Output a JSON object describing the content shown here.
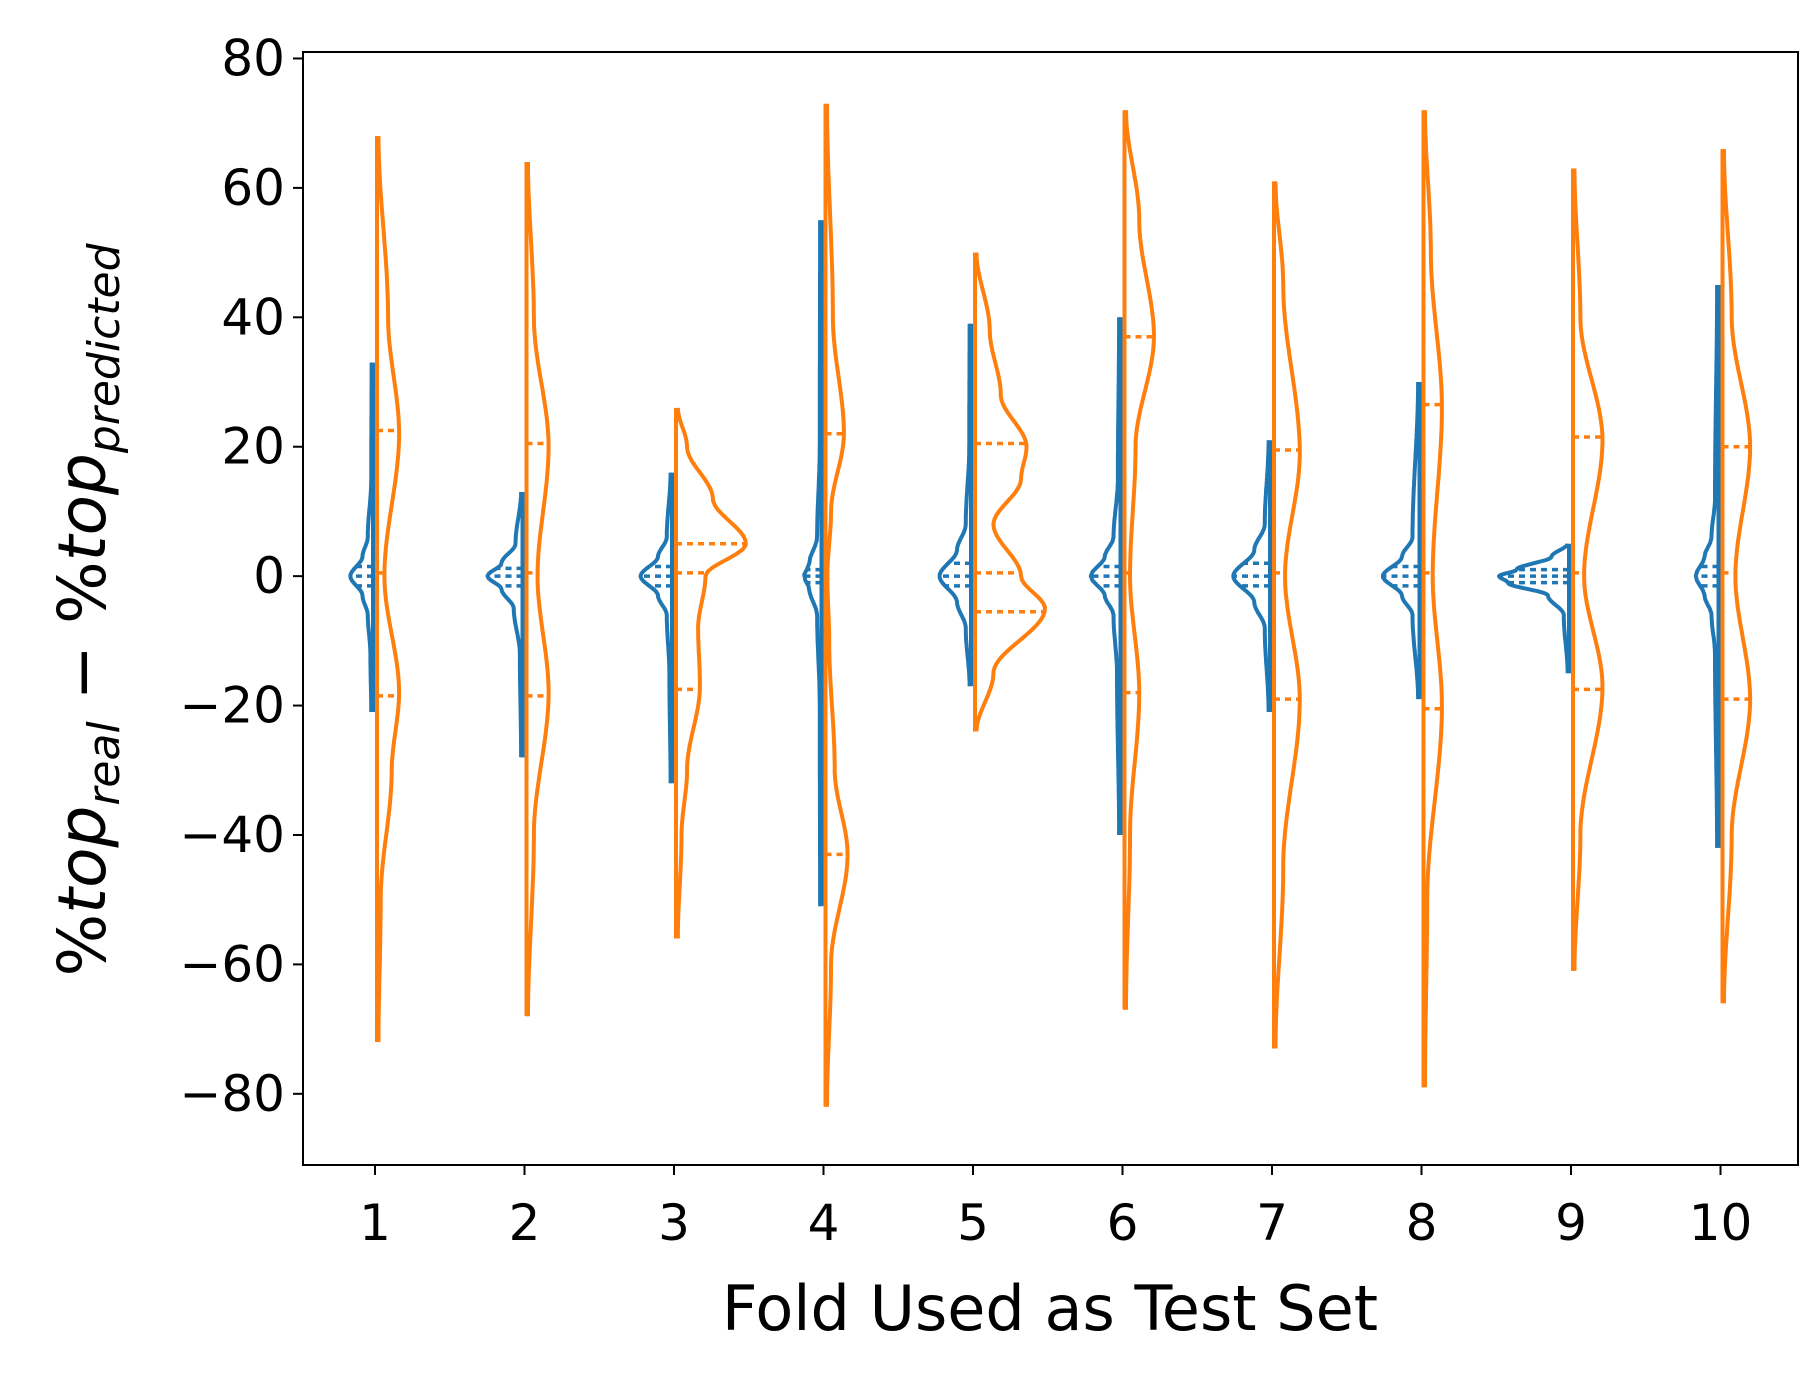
{
  "chart_data": {
    "type": "violin",
    "xlabel": "Fold Used as Test Set",
    "ylabel": {
      "prefix_1": "%",
      "word_1": "top",
      "sub_1": "real",
      "minus": " − ",
      "prefix_2": "%",
      "word_2": "top",
      "sub_2": "predicted"
    },
    "categories": [
      "1",
      "2",
      "3",
      "4",
      "5",
      "6",
      "7",
      "8",
      "9",
      "10"
    ],
    "ylim": [
      -91,
      81
    ],
    "yticks": [
      -80,
      -60,
      -40,
      -20,
      0,
      20,
      40,
      60,
      80
    ],
    "ytick_labels": [
      "−80",
      "−60",
      "−40",
      "−20",
      "0",
      "20",
      "40",
      "60",
      "80"
    ],
    "split": true,
    "quartile_lines": "dotted",
    "series": [
      {
        "side": "left",
        "color": "#1f77b4",
        "violins": [
          {
            "min": -21,
            "max": 33,
            "q1": -1.5,
            "median": 0,
            "q3": 1.5,
            "peak": 0,
            "peak_width": 0.13,
            "profile": [
              [
                -21,
                0.01
              ],
              [
                -12,
                0.015
              ],
              [
                -6,
                0.03
              ],
              [
                -3,
                0.06
              ],
              [
                0,
                0.13
              ],
              [
                3,
                0.06
              ],
              [
                6,
                0.03
              ],
              [
                15,
                0.01
              ],
              [
                33,
                0.008
              ]
            ]
          },
          {
            "min": -28,
            "max": 13,
            "q1": -1.5,
            "median": 0,
            "q3": 1.2,
            "peak": 0,
            "peak_width": 0.2,
            "profile": [
              [
                -28,
                0.008
              ],
              [
                -12,
                0.015
              ],
              [
                -5,
                0.05
              ],
              [
                -2,
                0.12
              ],
              [
                0,
                0.2
              ],
              [
                2,
                0.12
              ],
              [
                5,
                0.04
              ],
              [
                13,
                0.008
              ]
            ]
          },
          {
            "min": -32,
            "max": 16,
            "q1": -1.5,
            "median": 0,
            "q3": 1.5,
            "peak": 0,
            "peak_width": 0.18,
            "profile": [
              [
                -32,
                0.008
              ],
              [
                -15,
                0.015
              ],
              [
                -6,
                0.03
              ],
              [
                -3,
                0.08
              ],
              [
                0,
                0.18
              ],
              [
                3,
                0.08
              ],
              [
                6,
                0.03
              ],
              [
                16,
                0.008
              ]
            ]
          },
          {
            "min": -51,
            "max": 55,
            "q1": -1,
            "median": 0,
            "q3": 1,
            "peak": 0,
            "peak_width": 0.1,
            "profile": [
              [
                -51,
                0.008
              ],
              [
                -20,
                0.01
              ],
              [
                -6,
                0.025
              ],
              [
                -2,
                0.07
              ],
              [
                0,
                0.1
              ],
              [
                2,
                0.07
              ],
              [
                6,
                0.025
              ],
              [
                20,
                0.01
              ],
              [
                55,
                0.008
              ]
            ]
          },
          {
            "min": -17,
            "max": 39,
            "q1": -1.5,
            "median": 0,
            "q3": 2,
            "peak": 0,
            "peak_width": 0.18,
            "profile": [
              [
                -17,
                0.008
              ],
              [
                -8,
                0.03
              ],
              [
                -4,
                0.08
              ],
              [
                0,
                0.18
              ],
              [
                4,
                0.08
              ],
              [
                8,
                0.03
              ],
              [
                20,
                0.01
              ],
              [
                39,
                0.008
              ]
            ]
          },
          {
            "min": -40,
            "max": 40,
            "q1": -1.5,
            "median": 0,
            "q3": 1.5,
            "peak": 0,
            "peak_width": 0.17,
            "profile": [
              [
                -40,
                0.008
              ],
              [
                -15,
                0.02
              ],
              [
                -6,
                0.04
              ],
              [
                -3,
                0.09
              ],
              [
                0,
                0.17
              ],
              [
                3,
                0.09
              ],
              [
                6,
                0.04
              ],
              [
                15,
                0.015
              ],
              [
                40,
                0.008
              ]
            ]
          },
          {
            "min": -21,
            "max": 21,
            "q1": -1.5,
            "median": 0,
            "q3": 2,
            "peak": 0,
            "peak_width": 0.21,
            "profile": [
              [
                -21,
                0.008
              ],
              [
                -8,
                0.03
              ],
              [
                -4,
                0.09
              ],
              [
                0,
                0.21
              ],
              [
                4,
                0.09
              ],
              [
                8,
                0.03
              ],
              [
                21,
                0.008
              ]
            ]
          },
          {
            "min": -19,
            "max": 30,
            "q1": -1.5,
            "median": 0,
            "q3": 1.5,
            "peak": 0,
            "peak_width": 0.21,
            "profile": [
              [
                -19,
                0.008
              ],
              [
                -6,
                0.04
              ],
              [
                -3,
                0.1
              ],
              [
                0,
                0.21
              ],
              [
                3,
                0.1
              ],
              [
                6,
                0.04
              ],
              [
                30,
                0.008
              ]
            ]
          },
          {
            "min": -15,
            "max": 5,
            "q1": -1,
            "median": 0,
            "q3": 1,
            "peak": 0,
            "peak_width": 0.4,
            "profile": [
              [
                -15,
                0.008
              ],
              [
                -6,
                0.03
              ],
              [
                -3,
                0.12
              ],
              [
                -1,
                0.35
              ],
              [
                0,
                0.4
              ],
              [
                1,
                0.3
              ],
              [
                3,
                0.1
              ],
              [
                5,
                0.008
              ]
            ]
          },
          {
            "min": -42,
            "max": 45,
            "q1": -1.5,
            "median": 0,
            "q3": 1.5,
            "peak": 0,
            "peak_width": 0.13,
            "profile": [
              [
                -42,
                0.008
              ],
              [
                -12,
                0.02
              ],
              [
                -6,
                0.04
              ],
              [
                -3,
                0.08
              ],
              [
                0,
                0.13
              ],
              [
                3,
                0.08
              ],
              [
                6,
                0.04
              ],
              [
                12,
                0.02
              ],
              [
                45,
                0.008
              ]
            ]
          }
        ]
      },
      {
        "side": "right",
        "color": "#ff7f0e",
        "violins": [
          {
            "min": -72,
            "max": 68,
            "q1": -18.5,
            "median": 0.5,
            "q3": 22.5,
            "profile": [
              [
                -72,
                0.008
              ],
              [
                -50,
                0.02
              ],
              [
                -30,
                0.08
              ],
              [
                -18,
                0.12
              ],
              [
                0,
                0.04
              ],
              [
                22,
                0.12
              ],
              [
                40,
                0.06
              ],
              [
                68,
                0.008
              ]
            ]
          },
          {
            "min": -68,
            "max": 64,
            "q1": -18.5,
            "median": 0.5,
            "q3": 20.5,
            "profile": [
              [
                -68,
                0.008
              ],
              [
                -40,
                0.04
              ],
              [
                -18,
                0.12
              ],
              [
                0,
                0.06
              ],
              [
                20,
                0.12
              ],
              [
                40,
                0.04
              ],
              [
                64,
                0.008
              ]
            ]
          },
          {
            "min": -56,
            "max": 26,
            "q1": -17.5,
            "median": 0.5,
            "q3": 5,
            "profile": [
              [
                -56,
                0.01
              ],
              [
                -40,
                0.03
              ],
              [
                -30,
                0.06
              ],
              [
                -17,
                0.13
              ],
              [
                -8,
                0.12
              ],
              [
                0,
                0.16
              ],
              [
                5,
                0.38
              ],
              [
                12,
                0.2
              ],
              [
                20,
                0.06
              ],
              [
                26,
                0.01
              ]
            ]
          },
          {
            "min": -82,
            "max": 73,
            "q1": -43,
            "median": 0.5,
            "q3": 22,
            "profile": [
              [
                -82,
                0.008
              ],
              [
                -60,
                0.03
              ],
              [
                -43,
                0.12
              ],
              [
                -30,
                0.05
              ],
              [
                -10,
                0.02
              ],
              [
                0,
                0.01
              ],
              [
                10,
                0.03
              ],
              [
                22,
                0.1
              ],
              [
                40,
                0.04
              ],
              [
                73,
                0.008
              ]
            ]
          },
          {
            "min": -24,
            "max": 50,
            "q1": -5.5,
            "median": 0.5,
            "q3": 20.5,
            "profile": [
              [
                -24,
                0.008
              ],
              [
                -15,
                0.1
              ],
              [
                -5,
                0.38
              ],
              [
                0,
                0.25
              ],
              [
                8,
                0.1
              ],
              [
                15,
                0.25
              ],
              [
                20,
                0.28
              ],
              [
                28,
                0.14
              ],
              [
                38,
                0.08
              ],
              [
                50,
                0.008
              ]
            ]
          },
          {
            "min": -67,
            "max": 72,
            "q1": -18,
            "median": 0.5,
            "q3": 37,
            "profile": [
              [
                -67,
                0.008
              ],
              [
                -40,
                0.03
              ],
              [
                -18,
                0.08
              ],
              [
                0,
                0.03
              ],
              [
                20,
                0.06
              ],
              [
                37,
                0.16
              ],
              [
                55,
                0.08
              ],
              [
                72,
                0.008
              ]
            ]
          },
          {
            "min": -73,
            "max": 61,
            "q1": -19,
            "median": 0.5,
            "q3": 19.5,
            "profile": [
              [
                -73,
                0.008
              ],
              [
                -45,
                0.05
              ],
              [
                -19,
                0.14
              ],
              [
                0,
                0.06
              ],
              [
                19,
                0.14
              ],
              [
                45,
                0.05
              ],
              [
                61,
                0.008
              ]
            ]
          },
          {
            "min": -79,
            "max": 72,
            "q1": -20.5,
            "median": 0.5,
            "q3": 26.5,
            "profile": [
              [
                -79,
                0.008
              ],
              [
                -50,
                0.02
              ],
              [
                -20,
                0.1
              ],
              [
                0,
                0.05
              ],
              [
                26,
                0.1
              ],
              [
                50,
                0.04
              ],
              [
                72,
                0.008
              ]
            ]
          },
          {
            "min": -61,
            "max": 63,
            "q1": -17.5,
            "median": 0.5,
            "q3": 21.5,
            "profile": [
              [
                -61,
                0.008
              ],
              [
                -40,
                0.04
              ],
              [
                -17,
                0.16
              ],
              [
                0,
                0.06
              ],
              [
                21,
                0.16
              ],
              [
                40,
                0.04
              ],
              [
                63,
                0.008
              ]
            ]
          },
          {
            "min": -66,
            "max": 66,
            "q1": -19,
            "median": 0.5,
            "q3": 20,
            "profile": [
              [
                -66,
                0.008
              ],
              [
                -40,
                0.05
              ],
              [
                -19,
                0.15
              ],
              [
                0,
                0.07
              ],
              [
                20,
                0.15
              ],
              [
                40,
                0.05
              ],
              [
                66,
                0.008
              ]
            ]
          }
        ]
      }
    ]
  }
}
